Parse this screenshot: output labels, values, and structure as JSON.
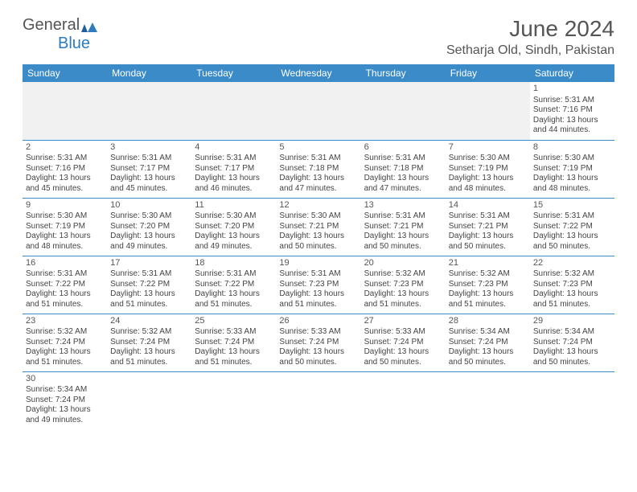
{
  "logo": {
    "text1": "General",
    "text2": "Blue"
  },
  "title": "June 2024",
  "location": "Setharja Old, Sindh, Pakistan",
  "colors": {
    "header_bg": "#3b8bc9",
    "header_text": "#ffffff",
    "rule": "#3b8bc9",
    "body_text": "#444444",
    "title_text": "#555555"
  },
  "dayHeaders": [
    "Sunday",
    "Monday",
    "Tuesday",
    "Wednesday",
    "Thursday",
    "Friday",
    "Saturday"
  ],
  "weeks": [
    [
      null,
      null,
      null,
      null,
      null,
      null,
      {
        "n": 1,
        "sr": "5:31 AM",
        "ss": "7:16 PM",
        "dl": "13 hours and 44 minutes."
      }
    ],
    [
      {
        "n": 2,
        "sr": "5:31 AM",
        "ss": "7:16 PM",
        "dl": "13 hours and 45 minutes."
      },
      {
        "n": 3,
        "sr": "5:31 AM",
        "ss": "7:17 PM",
        "dl": "13 hours and 45 minutes."
      },
      {
        "n": 4,
        "sr": "5:31 AM",
        "ss": "7:17 PM",
        "dl": "13 hours and 46 minutes."
      },
      {
        "n": 5,
        "sr": "5:31 AM",
        "ss": "7:18 PM",
        "dl": "13 hours and 47 minutes."
      },
      {
        "n": 6,
        "sr": "5:31 AM",
        "ss": "7:18 PM",
        "dl": "13 hours and 47 minutes."
      },
      {
        "n": 7,
        "sr": "5:30 AM",
        "ss": "7:19 PM",
        "dl": "13 hours and 48 minutes."
      },
      {
        "n": 8,
        "sr": "5:30 AM",
        "ss": "7:19 PM",
        "dl": "13 hours and 48 minutes."
      }
    ],
    [
      {
        "n": 9,
        "sr": "5:30 AM",
        "ss": "7:19 PM",
        "dl": "13 hours and 48 minutes."
      },
      {
        "n": 10,
        "sr": "5:30 AM",
        "ss": "7:20 PM",
        "dl": "13 hours and 49 minutes."
      },
      {
        "n": 11,
        "sr": "5:30 AM",
        "ss": "7:20 PM",
        "dl": "13 hours and 49 minutes."
      },
      {
        "n": 12,
        "sr": "5:30 AM",
        "ss": "7:21 PM",
        "dl": "13 hours and 50 minutes."
      },
      {
        "n": 13,
        "sr": "5:31 AM",
        "ss": "7:21 PM",
        "dl": "13 hours and 50 minutes."
      },
      {
        "n": 14,
        "sr": "5:31 AM",
        "ss": "7:21 PM",
        "dl": "13 hours and 50 minutes."
      },
      {
        "n": 15,
        "sr": "5:31 AM",
        "ss": "7:22 PM",
        "dl": "13 hours and 50 minutes."
      }
    ],
    [
      {
        "n": 16,
        "sr": "5:31 AM",
        "ss": "7:22 PM",
        "dl": "13 hours and 51 minutes."
      },
      {
        "n": 17,
        "sr": "5:31 AM",
        "ss": "7:22 PM",
        "dl": "13 hours and 51 minutes."
      },
      {
        "n": 18,
        "sr": "5:31 AM",
        "ss": "7:22 PM",
        "dl": "13 hours and 51 minutes."
      },
      {
        "n": 19,
        "sr": "5:31 AM",
        "ss": "7:23 PM",
        "dl": "13 hours and 51 minutes."
      },
      {
        "n": 20,
        "sr": "5:32 AM",
        "ss": "7:23 PM",
        "dl": "13 hours and 51 minutes."
      },
      {
        "n": 21,
        "sr": "5:32 AM",
        "ss": "7:23 PM",
        "dl": "13 hours and 51 minutes."
      },
      {
        "n": 22,
        "sr": "5:32 AM",
        "ss": "7:23 PM",
        "dl": "13 hours and 51 minutes."
      }
    ],
    [
      {
        "n": 23,
        "sr": "5:32 AM",
        "ss": "7:24 PM",
        "dl": "13 hours and 51 minutes."
      },
      {
        "n": 24,
        "sr": "5:32 AM",
        "ss": "7:24 PM",
        "dl": "13 hours and 51 minutes."
      },
      {
        "n": 25,
        "sr": "5:33 AM",
        "ss": "7:24 PM",
        "dl": "13 hours and 51 minutes."
      },
      {
        "n": 26,
        "sr": "5:33 AM",
        "ss": "7:24 PM",
        "dl": "13 hours and 50 minutes."
      },
      {
        "n": 27,
        "sr": "5:33 AM",
        "ss": "7:24 PM",
        "dl": "13 hours and 50 minutes."
      },
      {
        "n": 28,
        "sr": "5:34 AM",
        "ss": "7:24 PM",
        "dl": "13 hours and 50 minutes."
      },
      {
        "n": 29,
        "sr": "5:34 AM",
        "ss": "7:24 PM",
        "dl": "13 hours and 50 minutes."
      }
    ],
    [
      {
        "n": 30,
        "sr": "5:34 AM",
        "ss": "7:24 PM",
        "dl": "13 hours and 49 minutes."
      },
      null,
      null,
      null,
      null,
      null,
      null
    ]
  ],
  "labels": {
    "sunrise": "Sunrise:",
    "sunset": "Sunset:",
    "daylight": "Daylight:"
  }
}
